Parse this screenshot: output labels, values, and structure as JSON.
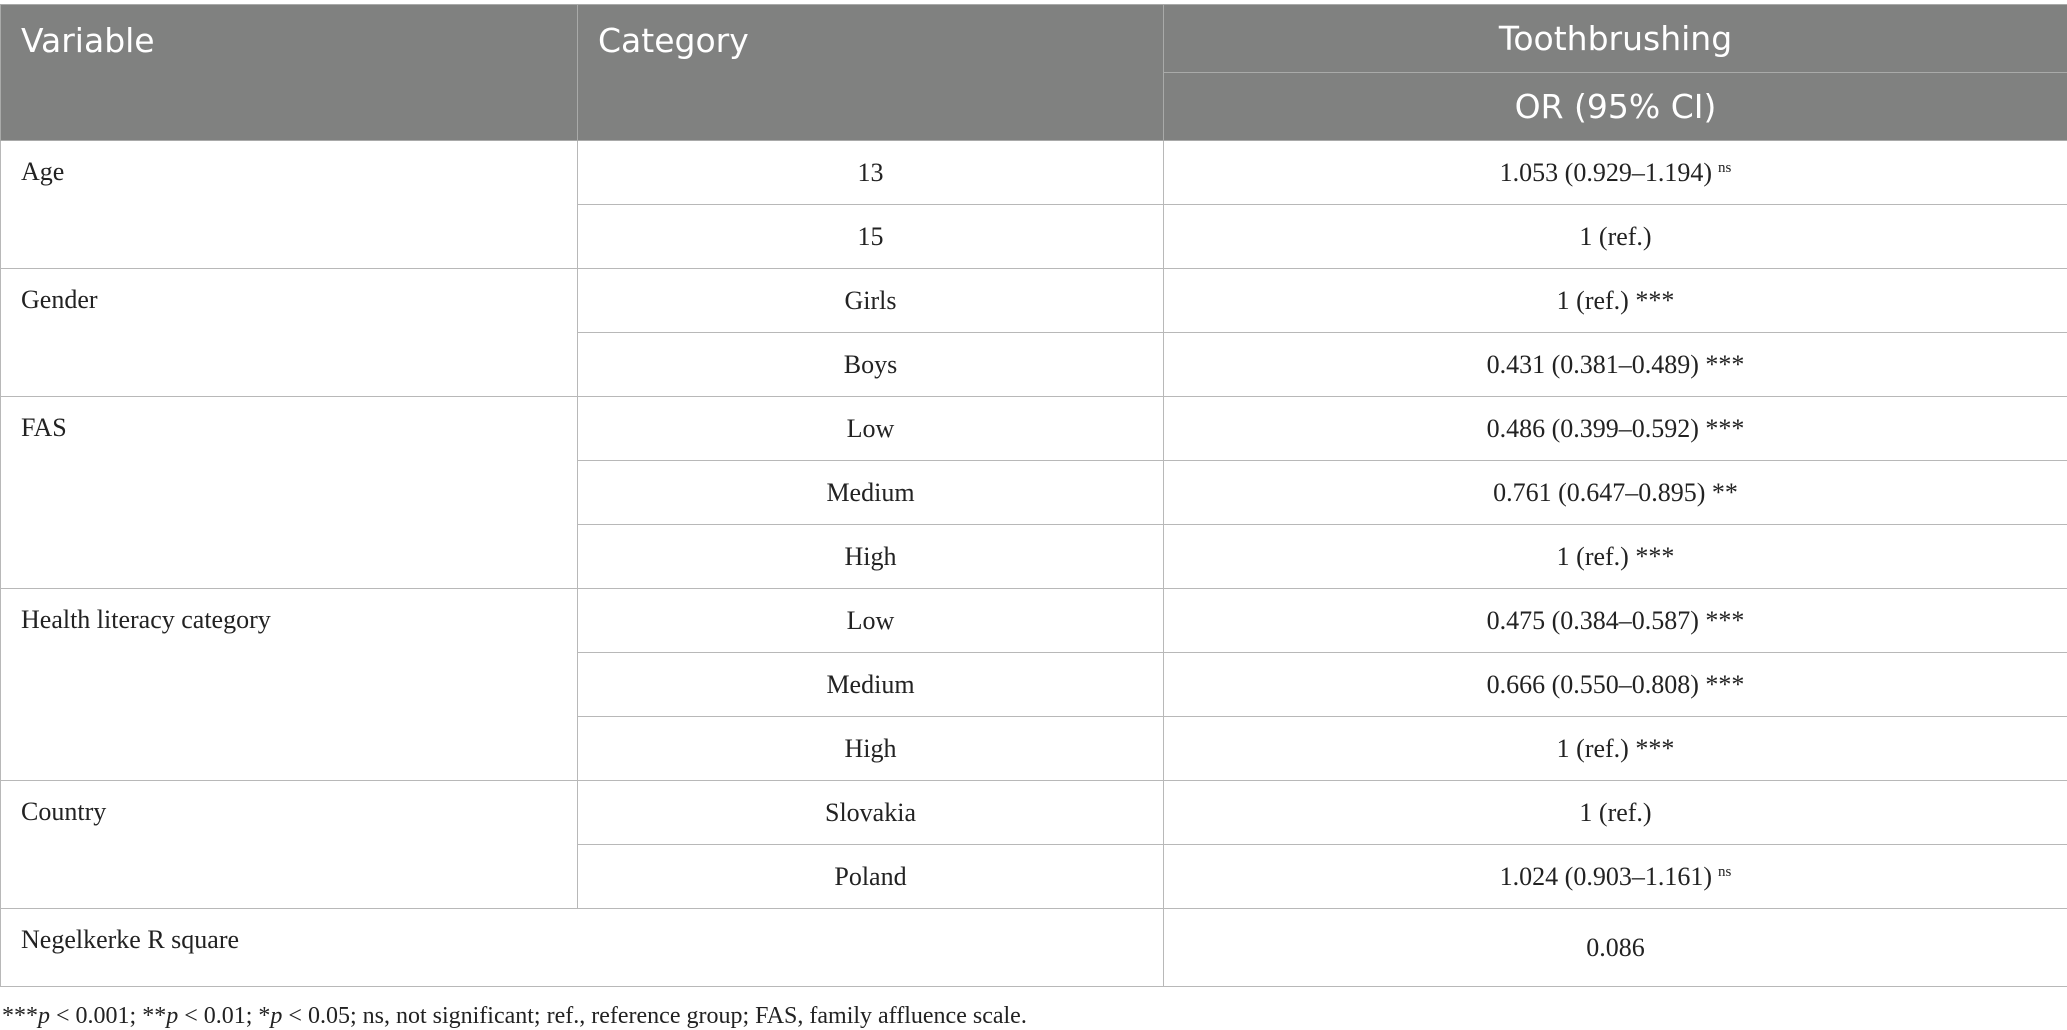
{
  "header": {
    "variable": "Variable",
    "category": "Category",
    "group": "Toothbrushing",
    "measure": "OR (95% CI)"
  },
  "groups": [
    {
      "variable": "Age",
      "rows": [
        {
          "category": "13",
          "value": "1.053 (0.929–1.194)",
          "superscript": "ns"
        },
        {
          "category": "15",
          "value": "1 (ref.)"
        }
      ]
    },
    {
      "variable": "Gender",
      "rows": [
        {
          "category": "Girls",
          "value": "1 (ref.)",
          "significance": "***"
        },
        {
          "category": "Boys",
          "value": "0.431 (0.381–0.489)",
          "significance": "***"
        }
      ]
    },
    {
      "variable": "FAS",
      "rows": [
        {
          "category": "Low",
          "value": "0.486 (0.399–0.592)",
          "significance": "***"
        },
        {
          "category": "Medium",
          "value": "0.761 (0.647–0.895)",
          "significance": "**"
        },
        {
          "category": "High",
          "value": "1 (ref.)",
          "significance": "***"
        }
      ]
    },
    {
      "variable": "Health literacy category",
      "rows": [
        {
          "category": "Low",
          "value": "0.475 (0.384–0.587)",
          "significance": "***"
        },
        {
          "category": "Medium",
          "value": "0.666 (0.550–0.808)",
          "significance": "***"
        },
        {
          "category": "High",
          "value": "1 (ref.)",
          "significance": "***"
        }
      ]
    },
    {
      "variable": "Country",
      "rows": [
        {
          "category": "Slovakia",
          "value": "1 (ref.)"
        },
        {
          "category": "Poland",
          "value": "1.024 (0.903–1.161)",
          "superscript": "ns"
        }
      ]
    }
  ],
  "summary": {
    "label": "Negelkerke R square",
    "value": "0.086"
  },
  "footnote": [
    "***",
    "p",
    " < 0.001; **",
    "p",
    " < 0.01; *",
    "p",
    " < 0.05; ns, not significant; ref., reference group; FAS, family affluence scale."
  ]
}
